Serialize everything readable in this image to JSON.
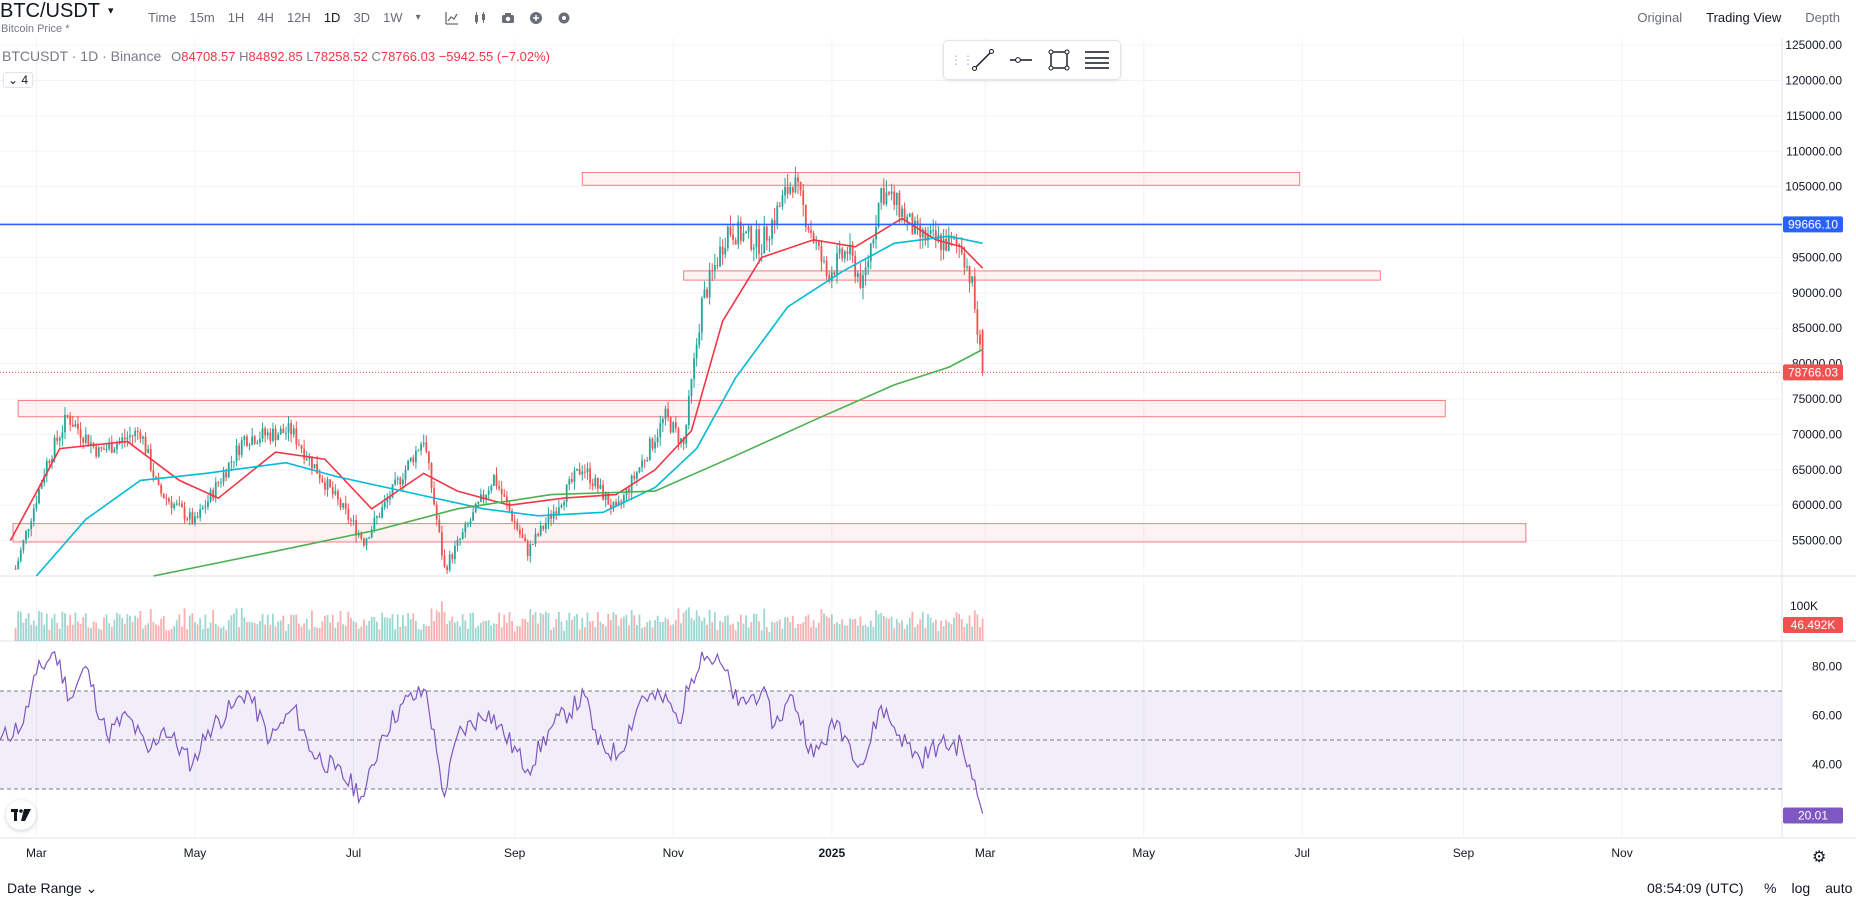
{
  "header": {
    "symbol": "BTC/USDT",
    "caret": "▾",
    "subtitle": "Bitcoin Price *",
    "intervals": [
      "Time",
      "15m",
      "1H",
      "4H",
      "12H",
      "1D",
      "3D",
      "1W"
    ],
    "active_interval": "1D",
    "more_caret": "▾",
    "views": [
      "Original",
      "Trading View",
      "Depth"
    ],
    "active_view": "Trading View"
  },
  "legend": {
    "symbol_text": "BTCUSDT · 1D · Binance",
    "open_label": "O",
    "open": "84708.57",
    "high_label": "H",
    "high": "84892.85",
    "low_label": "L",
    "low": "78258.52",
    "close_label": "C",
    "close": "78766.03",
    "change": "−5942.55 (−7.02%)",
    "collapse_label": "4"
  },
  "drawing_tools": [
    "trend-line-icon",
    "horizontal-ray-icon",
    "rectangle-icon",
    "fib-levels-icon"
  ],
  "footer": {
    "date_range": "Date Range",
    "date_range_caret": "⌄",
    "time": "08:54:09 (UTC)",
    "pct": "%",
    "log": "log",
    "auto": "auto"
  },
  "colors": {
    "up": "#26a69a",
    "down": "#ef5350",
    "ma_fast": "#f23645",
    "ma_mid": "#00bcd4",
    "ma_slow": "#4caf50",
    "hline": "#2962ff",
    "rsi": "#7e57c2",
    "zone": "#f77c80"
  },
  "chart_data": {
    "type": "candlestick",
    "symbol": "BTCUSDT",
    "interval": "1D",
    "exchange": "Binance",
    "price_axis": {
      "ticks": [
        "125000.00",
        "120000.00",
        "115000.00",
        "110000.00",
        "105000.00",
        "100000.00",
        "95000.00",
        "90000.00",
        "85000.00",
        "80000.00",
        "75000.00",
        "70000.00",
        "65000.00",
        "60000.00",
        "55000.00"
      ],
      "ylim": [
        50000,
        126000
      ]
    },
    "time_axis": [
      "Mar",
      "May",
      "Jul",
      "Sep",
      "Nov",
      "2025",
      "Mar",
      "May",
      "Jul",
      "Sep",
      "Nov"
    ],
    "time_axis_xlim": [
      "2024-02-16",
      "2025-12-31"
    ],
    "price_points": [
      [
        "2024-02-22",
        51000
      ],
      [
        "2024-03-05",
        66000
      ],
      [
        "2024-03-13",
        72500
      ],
      [
        "2024-03-25",
        67500
      ],
      [
        "2024-04-10",
        70500
      ],
      [
        "2024-04-17",
        62000
      ],
      [
        "2024-05-01",
        57500
      ],
      [
        "2024-05-20",
        69500
      ],
      [
        "2024-06-07",
        70500
      ],
      [
        "2024-06-24",
        61000
      ],
      [
        "2024-07-05",
        55000
      ],
      [
        "2024-07-28",
        69500
      ],
      [
        "2024-08-05",
        51000
      ],
      [
        "2024-08-24",
        64000
      ],
      [
        "2024-09-06",
        53500
      ],
      [
        "2024-09-27",
        65500
      ],
      [
        "2024-10-10",
        59000
      ],
      [
        "2024-10-29",
        72500
      ],
      [
        "2024-11-05",
        68500
      ],
      [
        "2024-11-12",
        88500
      ],
      [
        "2024-11-22",
        99000
      ],
      [
        "2024-12-05",
        97000
      ],
      [
        "2024-12-17",
        106000
      ],
      [
        "2024-12-30",
        92500
      ],
      [
        "2025-01-07",
        96000
      ],
      [
        "2025-01-13",
        91000
      ],
      [
        "2025-01-20",
        104500
      ],
      [
        "2025-01-27",
        102000
      ],
      [
        "2025-02-03",
        98000
      ],
      [
        "2025-02-14",
        97000
      ],
      [
        "2025-02-20",
        96500
      ],
      [
        "2025-02-24",
        91000
      ],
      [
        "2025-02-26",
        84500
      ],
      [
        "2025-02-28",
        78766
      ]
    ],
    "moving_averages": [
      {
        "color": "#f23645",
        "points": [
          [
            "2024-02-20",
            55000
          ],
          [
            "2024-03-10",
            68000
          ],
          [
            "2024-04-05",
            69000
          ],
          [
            "2024-04-25",
            63500
          ],
          [
            "2024-05-10",
            61000
          ],
          [
            "2024-06-01",
            67500
          ],
          [
            "2024-06-20",
            66500
          ],
          [
            "2024-07-08",
            59500
          ],
          [
            "2024-07-28",
            64500
          ],
          [
            "2024-08-10",
            62000
          ],
          [
            "2024-08-30",
            60000
          ],
          [
            "2024-09-20",
            61000
          ],
          [
            "2024-10-10",
            61500
          ],
          [
            "2024-10-25",
            65000
          ],
          [
            "2024-11-08",
            70500
          ],
          [
            "2024-11-20",
            86000
          ],
          [
            "2024-12-05",
            95000
          ],
          [
            "2024-12-25",
            97500
          ],
          [
            "2025-01-10",
            96500
          ],
          [
            "2025-01-28",
            100500
          ],
          [
            "2025-02-10",
            97500
          ],
          [
            "2025-02-20",
            96500
          ],
          [
            "2025-02-28",
            93500
          ]
        ]
      },
      {
        "color": "#00bcd4",
        "points": [
          [
            "2024-03-01",
            50000
          ],
          [
            "2024-03-20",
            58000
          ],
          [
            "2024-04-10",
            63500
          ],
          [
            "2024-05-05",
            64500
          ],
          [
            "2024-06-05",
            66000
          ],
          [
            "2024-06-25",
            64000
          ],
          [
            "2024-07-20",
            62000
          ],
          [
            "2024-08-20",
            59500
          ],
          [
            "2024-09-10",
            58500
          ],
          [
            "2024-10-05",
            59000
          ],
          [
            "2024-10-25",
            62500
          ],
          [
            "2024-11-10",
            68000
          ],
          [
            "2024-11-25",
            78000
          ],
          [
            "2024-12-15",
            88000
          ],
          [
            "2025-01-05",
            93000
          ],
          [
            "2025-01-25",
            97000
          ],
          [
            "2025-02-15",
            98000
          ],
          [
            "2025-02-28",
            97000
          ]
        ]
      },
      {
        "color": "#4caf50",
        "points": [
          [
            "2024-04-15",
            50000
          ],
          [
            "2024-06-01",
            53500
          ],
          [
            "2024-07-10",
            56500
          ],
          [
            "2024-08-10",
            59500
          ],
          [
            "2024-09-15",
            61500
          ],
          [
            "2024-10-25",
            62000
          ],
          [
            "2024-11-25",
            67000
          ],
          [
            "2024-12-25",
            72000
          ],
          [
            "2025-01-25",
            77000
          ],
          [
            "2025-02-15",
            79500
          ],
          [
            "2025-02-28",
            82000
          ]
        ]
      }
    ],
    "horizontal_line": {
      "price": 99666.1,
      "label": "99666.10"
    },
    "last_price": {
      "price": 78766.03,
      "label": "78766.03"
    },
    "zones": [
      {
        "from": "2024-09-27",
        "to": "2025-06-30",
        "low": 105200,
        "high": 107000
      },
      {
        "from": "2024-11-05",
        "to": "2025-07-31",
        "low": 91800,
        "high": 93100
      },
      {
        "from": "2024-02-23",
        "to": "2025-08-25",
        "low": 72500,
        "high": 74800
      },
      {
        "from": "2024-02-21",
        "to": "2025-09-25",
        "low": 54800,
        "high": 57400
      }
    ],
    "volume": {
      "label_tick": "100K",
      "last_label": "46.492K"
    },
    "rsi": {
      "ticks": [
        "80.00",
        "60.00",
        "40.00"
      ],
      "ylim": [
        10,
        90
      ],
      "band": [
        30,
        70
      ],
      "mid": 50,
      "last_label": "20.01",
      "points": [
        [
          "2024-02-16",
          50
        ],
        [
          "2024-02-25",
          57
        ],
        [
          "2024-03-01",
          77
        ],
        [
          "2024-03-08",
          86
        ],
        [
          "2024-03-14",
          67
        ],
        [
          "2024-03-20",
          80
        ],
        [
          "2024-03-28",
          52
        ],
        [
          "2024-04-05",
          60
        ],
        [
          "2024-04-13",
          45
        ],
        [
          "2024-04-19",
          55
        ],
        [
          "2024-04-30",
          40
        ],
        [
          "2024-05-06",
          54
        ],
        [
          "2024-05-16",
          64
        ],
        [
          "2024-05-21",
          70
        ],
        [
          "2024-05-30",
          50
        ],
        [
          "2024-06-08",
          63
        ],
        [
          "2024-06-15",
          45
        ],
        [
          "2024-06-24",
          38
        ],
        [
          "2024-07-05",
          27
        ],
        [
          "2024-07-12",
          52
        ],
        [
          "2024-07-20",
          65
        ],
        [
          "2024-07-29",
          70
        ],
        [
          "2024-08-02",
          45
        ],
        [
          "2024-08-05",
          27
        ],
        [
          "2024-08-10",
          52
        ],
        [
          "2024-08-22",
          62
        ],
        [
          "2024-09-06",
          38
        ],
        [
          "2024-09-15",
          55
        ],
        [
          "2024-09-28",
          68
        ],
        [
          "2024-10-03",
          48
        ],
        [
          "2024-10-11",
          44
        ],
        [
          "2024-10-20",
          68
        ],
        [
          "2024-10-30",
          66
        ],
        [
          "2024-11-03",
          57
        ],
        [
          "2024-11-08",
          75
        ],
        [
          "2024-11-12",
          86
        ],
        [
          "2024-11-20",
          80
        ],
        [
          "2024-11-26",
          64
        ],
        [
          "2024-12-05",
          70
        ],
        [
          "2024-12-10",
          56
        ],
        [
          "2024-12-17",
          68
        ],
        [
          "2024-12-25",
          43
        ],
        [
          "2025-01-03",
          58
        ],
        [
          "2025-01-08",
          48
        ],
        [
          "2025-01-13",
          40
        ],
        [
          "2025-01-20",
          64
        ],
        [
          "2025-01-27",
          52
        ],
        [
          "2025-02-04",
          42
        ],
        [
          "2025-02-11",
          48
        ],
        [
          "2025-02-20",
          48
        ],
        [
          "2025-02-24",
          34
        ],
        [
          "2025-02-27",
          24
        ],
        [
          "2025-02-28",
          20
        ]
      ]
    }
  }
}
